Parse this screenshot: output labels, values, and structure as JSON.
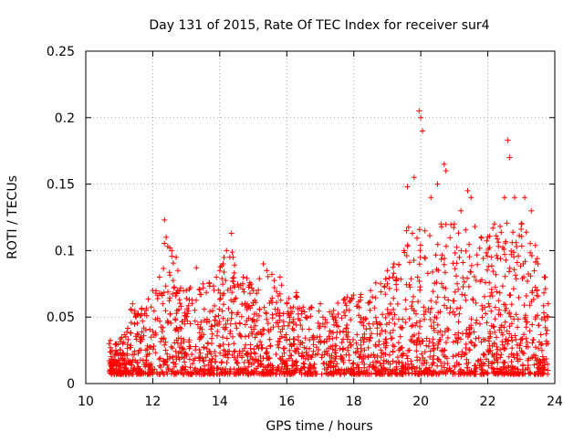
{
  "chart_data": {
    "type": "scatter",
    "title": "Day 131 of 2015, Rate Of TEC Index for receiver sur4",
    "xlabel": "GPS time / hours",
    "ylabel": "ROTI / TECUs",
    "xlim": [
      10,
      24
    ],
    "ylim": [
      0,
      0.25
    ],
    "x_ticks": [
      10,
      12,
      14,
      16,
      18,
      20,
      22,
      24
    ],
    "x_tick_labels": [
      "10",
      "12",
      "14",
      "16",
      "18",
      "20",
      "22",
      "24"
    ],
    "y_ticks": [
      0,
      0.05,
      0.1,
      0.15,
      0.2,
      0.25
    ],
    "y_tick_labels": [
      "0",
      "0.05",
      "0.1",
      "0.15",
      "0.2",
      "0.25"
    ],
    "grid": true,
    "marker": "+",
    "marker_color": "#ff0000",
    "data_range_x": [
      10.7,
      23.8
    ],
    "series": [
      {
        "name": "ROTI",
        "x": [
          10.7,
          10.9,
          11.1,
          11.4,
          11.5,
          11.8,
          12.0,
          12.2,
          12.3,
          12.35,
          12.4,
          12.7,
          12.75,
          13.0,
          13.3,
          13.5,
          13.9,
          14.0,
          14.1,
          14.2,
          14.35,
          14.4,
          14.7,
          15.0,
          15.3,
          15.4,
          15.8,
          16.0,
          16.3,
          16.6,
          17.0,
          17.4,
          17.8,
          18.2,
          18.5,
          18.8,
          19.0,
          19.2,
          19.5,
          19.6,
          19.8,
          19.95,
          20.0,
          20.05,
          20.3,
          20.5,
          20.7,
          20.75,
          21.0,
          21.2,
          21.4,
          21.5,
          21.8,
          22.0,
          22.2,
          22.5,
          22.6,
          22.65,
          22.8,
          23.0,
          23.1,
          23.3,
          23.5,
          23.7,
          23.8
        ],
        "y": [
          0.03,
          0.025,
          0.03,
          0.06,
          0.05,
          0.055,
          0.07,
          0.08,
          0.06,
          0.123,
          0.11,
          0.095,
          0.085,
          0.07,
          0.087,
          0.075,
          0.08,
          0.085,
          0.09,
          0.1,
          0.113,
          0.095,
          0.08,
          0.07,
          0.09,
          0.085,
          0.08,
          0.06,
          0.065,
          0.05,
          0.06,
          0.055,
          0.065,
          0.065,
          0.07,
          0.075,
          0.085,
          0.09,
          0.1,
          0.148,
          0.155,
          0.205,
          0.2,
          0.19,
          0.14,
          0.15,
          0.165,
          0.16,
          0.12,
          0.13,
          0.145,
          0.14,
          0.11,
          0.11,
          0.12,
          0.14,
          0.183,
          0.17,
          0.14,
          0.12,
          0.14,
          0.13,
          0.09,
          0.08,
          0.06
        ]
      }
    ]
  }
}
